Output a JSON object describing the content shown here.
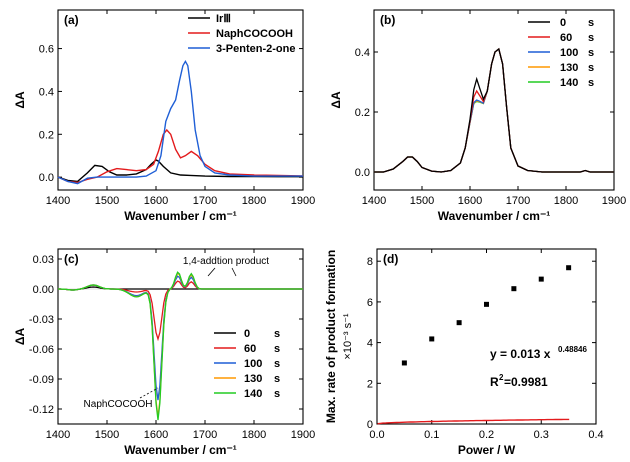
{
  "chart_data": [
    {
      "panel": "(a)",
      "type": "line",
      "xlabel": "Wavenumber / cm⁻¹",
      "ylabel": "ΔA",
      "xlim": [
        1400,
        1900
      ],
      "ylim": [
        -0.06,
        0.78
      ],
      "xticks": [
        1400,
        1500,
        1600,
        1700,
        1800,
        1900
      ],
      "yticks": [
        0.0,
        0.2,
        0.4,
        0.6
      ],
      "ytick_labels": [
        "0.0",
        "0.2",
        "0.4",
        "0.6"
      ],
      "legend": "top-right",
      "series": [
        {
          "name": "IrⅢ",
          "color": "#000000",
          "x": [
            1400,
            1420,
            1440,
            1460,
            1475,
            1490,
            1505,
            1520,
            1540,
            1560,
            1580,
            1590,
            1600,
            1605,
            1615,
            1630,
            1650,
            1670,
            1700,
            1750,
            1800,
            1850,
            1900
          ],
          "y": [
            0.0,
            -0.015,
            -0.02,
            0.02,
            0.055,
            0.05,
            0.025,
            0.01,
            0.01,
            0.015,
            0.035,
            0.06,
            0.08,
            0.075,
            0.05,
            0.02,
            0.01,
            0.008,
            0.005,
            0.003,
            0.003,
            0.002,
            0.002
          ]
        },
        {
          "name": "NaphCOCOOH",
          "color": "#e31a1c",
          "x": [
            1400,
            1420,
            1440,
            1460,
            1480,
            1500,
            1520,
            1540,
            1560,
            1580,
            1595,
            1605,
            1615,
            1622,
            1630,
            1640,
            1650,
            1660,
            1672,
            1685,
            1700,
            1720,
            1750,
            1800,
            1850,
            1900
          ],
          "y": [
            0.0,
            -0.02,
            -0.025,
            -0.01,
            0.0,
            0.025,
            0.04,
            0.035,
            0.03,
            0.035,
            0.06,
            0.12,
            0.2,
            0.22,
            0.2,
            0.13,
            0.09,
            0.1,
            0.12,
            0.1,
            0.06,
            0.03,
            0.015,
            0.01,
            0.008,
            0.006
          ]
        },
        {
          "name": "3-Penten-2-one",
          "color": "#1f5fd6",
          "x": [
            1400,
            1420,
            1440,
            1460,
            1480,
            1500,
            1520,
            1540,
            1560,
            1580,
            1600,
            1610,
            1620,
            1630,
            1640,
            1648,
            1655,
            1660,
            1665,
            1672,
            1680,
            1690,
            1700,
            1720,
            1750,
            1800,
            1850,
            1900
          ],
          "y": [
            0.0,
            -0.02,
            -0.03,
            -0.005,
            0.0,
            0.0,
            0.0,
            0.0,
            0.0,
            0.005,
            0.03,
            0.1,
            0.26,
            0.32,
            0.36,
            0.45,
            0.52,
            0.54,
            0.52,
            0.4,
            0.22,
            0.1,
            0.05,
            0.02,
            0.01,
            0.005,
            0.005,
            0.005
          ]
        }
      ]
    },
    {
      "panel": "(b)",
      "type": "line",
      "xlabel": "Wavenumber / cm⁻¹",
      "ylabel": "ΔA",
      "xlim": [
        1400,
        1900
      ],
      "ylim": [
        -0.06,
        0.54
      ],
      "xticks": [
        1400,
        1500,
        1600,
        1700,
        1800,
        1900
      ],
      "yticks": [
        0.0,
        0.2,
        0.4
      ],
      "ytick_labels": [
        "0.0",
        "0.2",
        "0.4"
      ],
      "legend": "top-right",
      "legend_unit": "s",
      "series": [
        {
          "name": "0",
          "color": "#000000",
          "y_peak": 0.31
        },
        {
          "name": "60",
          "color": "#e31a1c",
          "y_peak": 0.27
        },
        {
          "name": "100",
          "color": "#1f5fd6",
          "y_peak": 0.24
        },
        {
          "name": "130",
          "color": "#ff9900",
          "y_peak": 0.237
        },
        {
          "name": "140",
          "color": "#22cc22",
          "y_peak": 0.235
        }
      ],
      "base_x": [
        1400,
        1420,
        1440,
        1460,
        1470,
        1480,
        1490,
        1500,
        1520,
        1540,
        1560,
        1580,
        1590,
        1600,
        1608,
        1614,
        1620,
        1628,
        1636,
        1645,
        1652,
        1660,
        1668,
        1676,
        1685,
        1700,
        1720,
        1750,
        1800,
        1830,
        1840,
        1850,
        1900
      ],
      "base_y": [
        0.0,
        0.0,
        0.01,
        0.035,
        0.05,
        0.05,
        0.035,
        0.015,
        0.003,
        0.0,
        0.005,
        0.03,
        0.08,
        0.17,
        0.25,
        0.27,
        0.255,
        0.235,
        0.27,
        0.36,
        0.4,
        0.41,
        0.36,
        0.22,
        0.08,
        0.02,
        0.005,
        0.0,
        0.0,
        0.0,
        0.005,
        0.0,
        0.0
      ]
    },
    {
      "panel": "(c)",
      "type": "line",
      "xlabel": "Wavenumber / cm⁻¹",
      "ylabel": "ΔA",
      "xlim": [
        1400,
        1900
      ],
      "ylim": [
        -0.135,
        0.04
      ],
      "xticks": [
        1400,
        1500,
        1600,
        1700,
        1800,
        1900
      ],
      "yticks": [
        0.03,
        0.0,
        -0.03,
        -0.06,
        -0.09,
        -0.12
      ],
      "ytick_labels": [
        "0.03",
        "0.00",
        "-0.03",
        "-0.06",
        "-0.09",
        "-0.12"
      ],
      "legend": "center-right",
      "legend_unit": "s",
      "annotations": [
        "1,4-addtion product",
        "NaphCOCOOH"
      ],
      "series": [
        {
          "name": "0",
          "color": "#000000",
          "depth": 0.0,
          "bump": 0.0
        },
        {
          "name": "60",
          "color": "#e31a1c",
          "depth": 0.05,
          "bump": 0.008
        },
        {
          "name": "100",
          "color": "#1f5fd6",
          "depth": 0.111,
          "bump": 0.013
        },
        {
          "name": "130",
          "color": "#ff9900",
          "depth": 0.128,
          "bump": 0.016
        },
        {
          "name": "140",
          "color": "#22cc22",
          "depth": 0.131,
          "bump": 0.017
        }
      ]
    },
    {
      "panel": "(d)",
      "type": "scatter",
      "xlabel": "Power / W",
      "ylabel": "Max. rate of product formation",
      "ylabel2": "×10⁻³ s⁻¹",
      "xlim": [
        0.0,
        0.4
      ],
      "ylim": [
        0,
        8.6
      ],
      "xticks": [
        0.0,
        0.1,
        0.2,
        0.3,
        0.4
      ],
      "xtick_labels": [
        "0.0",
        "0.1",
        "0.2",
        "0.3",
        "0.4"
      ],
      "yticks": [
        0,
        2,
        4,
        6,
        8
      ],
      "ytick_labels": [
        "0",
        "2",
        "4",
        "6",
        "8"
      ],
      "x": [
        0.05,
        0.1,
        0.15,
        0.2,
        0.25,
        0.3,
        0.35
      ],
      "y": [
        3.0,
        4.18,
        4.98,
        5.88,
        6.65,
        7.12,
        7.68
      ],
      "point_color": "#000000",
      "fit_color": "#e31a1c",
      "fit": {
        "a": 0.013,
        "b": 0.48846,
        "scale": 1000
      },
      "fit_eq_main": "y = 0.013 x",
      "fit_eq_exp": "0.48846",
      "r2_label": "R",
      "r2_exp": "2",
      "r2_value": " =0.9981"
    }
  ]
}
